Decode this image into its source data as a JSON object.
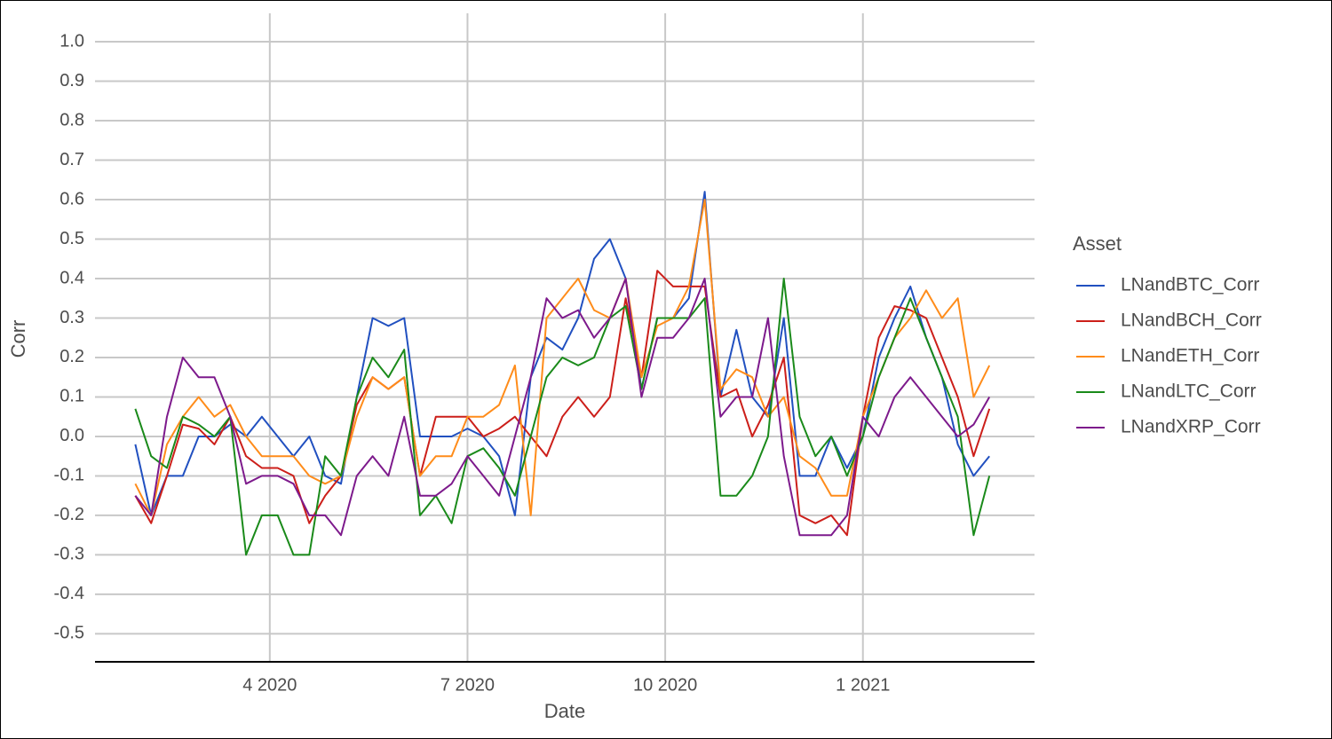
{
  "chart_data": {
    "type": "line",
    "x_label": "Date",
    "y_label": "Corr",
    "legend_title": "Asset",
    "legend_position": "right",
    "grid": true,
    "xlim": [
      2020.029,
      2021.217
    ],
    "xticks": [
      {
        "value": 2020.25,
        "label": "4 2020"
      },
      {
        "value": 2020.5,
        "label": "7 2020"
      },
      {
        "value": 2020.75,
        "label": "10 2020"
      },
      {
        "value": 2021.0,
        "label": "1 2021"
      }
    ],
    "ylim": [
      -0.571,
      1.072
    ],
    "yticks": [
      -0.5,
      -0.4,
      -0.3,
      -0.2,
      -0.1,
      {
        "value": 0,
        "label": "0.0"
      },
      0.1,
      0.2,
      0.3,
      0.4,
      0.5,
      0.6,
      0.7,
      0.8,
      0.9,
      {
        "value": 1,
        "label": "1.0"
      }
    ],
    "x": [
      2020.08,
      2020.1,
      2020.12,
      2020.14,
      2020.16,
      2020.18,
      2020.2,
      2020.22,
      2020.24,
      2020.26,
      2020.28,
      2020.3,
      2020.32,
      2020.34,
      2020.36,
      2020.38,
      2020.4,
      2020.42,
      2020.44,
      2020.46,
      2020.48,
      2020.5,
      2020.52,
      2020.54,
      2020.56,
      2020.58,
      2020.6,
      2020.62,
      2020.64,
      2020.66,
      2020.68,
      2020.7,
      2020.72,
      2020.74,
      2020.76,
      2020.78,
      2020.8,
      2020.82,
      2020.84,
      2020.86,
      2020.88,
      2020.9,
      2020.92,
      2020.94,
      2020.96,
      2020.98,
      2021.0,
      2021.02,
      2021.04,
      2021.06,
      2021.08,
      2021.1,
      2021.12,
      2021.14,
      2021.16
    ],
    "series": [
      {
        "name": "LNandBTC_Corr",
        "color": "#2150c0",
        "values": [
          -0.02,
          -0.2,
          -0.1,
          -0.1,
          0.0,
          0.0,
          0.03,
          0.0,
          0.05,
          0.0,
          -0.05,
          0.0,
          -0.1,
          -0.12,
          0.1,
          0.3,
          0.28,
          0.3,
          0.0,
          0.0,
          0.0,
          0.02,
          0.0,
          -0.05,
          -0.2,
          0.15,
          0.25,
          0.22,
          0.3,
          0.45,
          0.5,
          0.4,
          0.12,
          0.3,
          0.3,
          0.35,
          0.62,
          0.1,
          0.27,
          0.1,
          0.05,
          0.3,
          -0.1,
          -0.1,
          0.0,
          -0.08,
          0.0,
          0.2,
          0.3,
          0.38,
          0.25,
          0.15,
          -0.02,
          -0.1,
          -0.05
        ]
      },
      {
        "name": "LNandBCH_Corr",
        "color": "#cc1f1a",
        "values": [
          -0.15,
          -0.22,
          -0.1,
          0.03,
          0.02,
          -0.02,
          0.05,
          -0.05,
          -0.08,
          -0.08,
          -0.1,
          -0.22,
          -0.15,
          -0.1,
          0.08,
          0.15,
          0.12,
          0.15,
          -0.1,
          0.05,
          0.05,
          0.05,
          0.0,
          0.02,
          0.05,
          0.0,
          -0.05,
          0.05,
          0.1,
          0.05,
          0.1,
          0.35,
          0.15,
          0.42,
          0.38,
          0.38,
          0.38,
          0.1,
          0.12,
          0.0,
          0.08,
          0.2,
          -0.2,
          -0.22,
          -0.2,
          -0.25,
          0.05,
          0.25,
          0.33,
          0.32,
          0.3,
          0.2,
          0.1,
          -0.05,
          0.07
        ]
      },
      {
        "name": "LNandETH_Corr",
        "color": "#ff8c1a",
        "values": [
          -0.12,
          -0.2,
          -0.02,
          0.05,
          0.1,
          0.05,
          0.08,
          0.0,
          -0.05,
          -0.05,
          -0.05,
          -0.1,
          -0.12,
          -0.1,
          0.05,
          0.15,
          0.12,
          0.15,
          -0.1,
          -0.05,
          -0.05,
          0.05,
          0.05,
          0.08,
          0.18,
          -0.2,
          0.3,
          0.35,
          0.4,
          0.32,
          0.3,
          0.4,
          0.15,
          0.28,
          0.3,
          0.38,
          0.6,
          0.12,
          0.17,
          0.15,
          0.05,
          0.1,
          -0.05,
          -0.08,
          -0.15,
          -0.15,
          0.05,
          0.15,
          0.25,
          0.3,
          0.37,
          0.3,
          0.35,
          0.1,
          0.18
        ]
      },
      {
        "name": "LNandLTC_Corr",
        "color": "#1a8a1a",
        "values": [
          0.07,
          -0.05,
          -0.08,
          0.05,
          0.03,
          0.0,
          0.05,
          -0.3,
          -0.2,
          -0.2,
          -0.3,
          -0.3,
          -0.05,
          -0.1,
          0.1,
          0.2,
          0.15,
          0.22,
          -0.2,
          -0.15,
          -0.22,
          -0.05,
          -0.03,
          -0.08,
          -0.15,
          0.0,
          0.15,
          0.2,
          0.18,
          0.2,
          0.3,
          0.33,
          0.12,
          0.3,
          0.3,
          0.3,
          0.35,
          -0.15,
          -0.15,
          -0.1,
          0.0,
          0.4,
          0.05,
          -0.05,
          0.0,
          -0.1,
          0.0,
          0.15,
          0.25,
          0.35,
          0.25,
          0.15,
          0.05,
          -0.25,
          -0.1
        ]
      },
      {
        "name": "LNandXRP_Corr",
        "color": "#7d1a8c",
        "values": [
          -0.15,
          -0.2,
          0.05,
          0.2,
          0.15,
          0.15,
          0.05,
          -0.12,
          -0.1,
          -0.1,
          -0.12,
          -0.2,
          -0.2,
          -0.25,
          -0.1,
          -0.05,
          -0.1,
          0.05,
          -0.15,
          -0.15,
          -0.12,
          -0.05,
          -0.1,
          -0.15,
          0.0,
          0.15,
          0.35,
          0.3,
          0.32,
          0.25,
          0.3,
          0.4,
          0.1,
          0.25,
          0.25,
          0.3,
          0.4,
          0.05,
          0.1,
          0.1,
          0.3,
          -0.05,
          -0.25,
          -0.25,
          -0.25,
          -0.2,
          0.05,
          0.0,
          0.1,
          0.15,
          0.1,
          0.05,
          0.0,
          0.03,
          0.1
        ]
      }
    ]
  }
}
